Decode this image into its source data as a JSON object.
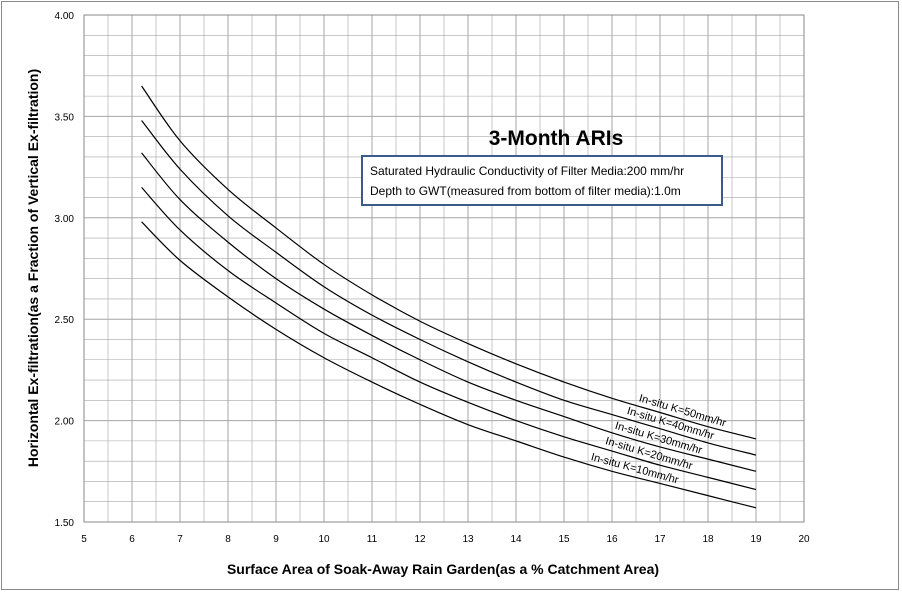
{
  "chart_data": {
    "type": "line",
    "title": "3-Month ARIs",
    "annotation": [
      "Saturated Hydraulic Conductivity of Filter Media:200 mm/hr",
      "Depth to GWT(measured from bottom of filter media):1.0m"
    ],
    "xlabel": "Surface Area of Soak-Away Rain Garden(as a %  Catchment Area)",
    "ylabel": "Horizontal Ex-filtration(as a Fraction of Vertical Ex-filtration)",
    "xlim": [
      5,
      20
    ],
    "ylim": [
      1.5,
      4.0
    ],
    "x_ticks": [
      "5",
      "6",
      "7",
      "8",
      "9",
      "10",
      "11",
      "12",
      "13",
      "14",
      "15",
      "16",
      "17",
      "18",
      "19",
      "20"
    ],
    "y_ticks": [
      "1.50",
      "2.00",
      "2.50",
      "3.00",
      "3.50",
      "4.00"
    ],
    "grid": true,
    "series": [
      {
        "name": "In-situ K=50mm/hr",
        "x": [
          6.2,
          7,
          8,
          9,
          10,
          11,
          12,
          13,
          14,
          15,
          16,
          17,
          18,
          19
        ],
        "y": [
          3.65,
          3.38,
          3.14,
          2.95,
          2.77,
          2.62,
          2.49,
          2.38,
          2.28,
          2.19,
          2.11,
          2.04,
          1.97,
          1.91
        ]
      },
      {
        "name": "In-situ K=40mm/hr",
        "x": [
          6.2,
          7,
          8,
          9,
          10,
          11,
          12,
          13,
          14,
          15,
          16,
          17,
          18,
          19
        ],
        "y": [
          3.48,
          3.24,
          3.01,
          2.83,
          2.66,
          2.52,
          2.4,
          2.29,
          2.19,
          2.1,
          2.03,
          1.96,
          1.89,
          1.83
        ]
      },
      {
        "name": "In-situ K=30mm/hr",
        "x": [
          6.2,
          7,
          8,
          9,
          10,
          11,
          12,
          13,
          14,
          15,
          16,
          17,
          18,
          19
        ],
        "y": [
          3.32,
          3.09,
          2.88,
          2.7,
          2.55,
          2.42,
          2.3,
          2.19,
          2.1,
          2.02,
          1.94,
          1.87,
          1.81,
          1.75
        ]
      },
      {
        "name": "In-situ K=20mm/hr",
        "x": [
          6.2,
          7,
          8,
          9,
          10,
          11,
          12,
          13,
          14,
          15,
          16,
          17,
          18,
          19
        ],
        "y": [
          3.15,
          2.94,
          2.74,
          2.58,
          2.43,
          2.31,
          2.19,
          2.09,
          2.0,
          1.92,
          1.85,
          1.78,
          1.72,
          1.66
        ]
      },
      {
        "name": "In-situ K=10mm/hr",
        "x": [
          6.2,
          7,
          8,
          9,
          10,
          11,
          12,
          13,
          14,
          15,
          16,
          17,
          18,
          19
        ],
        "y": [
          2.98,
          2.79,
          2.61,
          2.45,
          2.31,
          2.19,
          2.08,
          1.98,
          1.9,
          1.82,
          1.75,
          1.69,
          1.63,
          1.57
        ]
      }
    ],
    "colors": {
      "line": "#000000",
      "grid": "#a6a6a6",
      "box_border": "#3a5a8c"
    }
  }
}
